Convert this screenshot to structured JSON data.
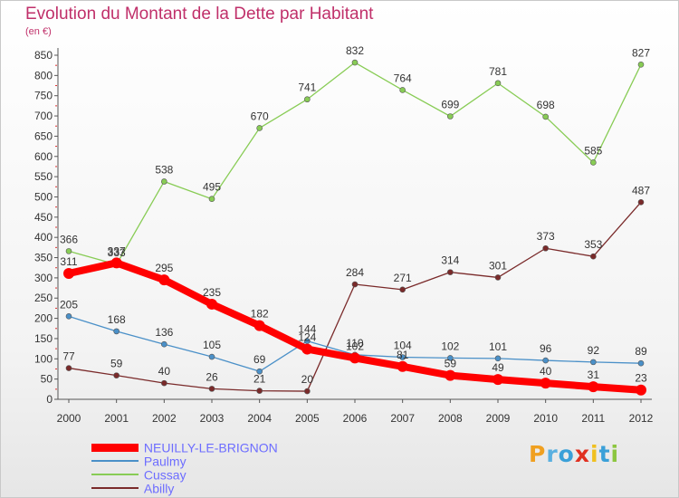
{
  "header": {
    "title": "Evolution du Montant de la Dette par Habitant",
    "unit": "(en €)"
  },
  "brand": {
    "letters": [
      "P",
      "r",
      "o",
      "x",
      "i",
      "t",
      "i"
    ],
    "colors": [
      "#f0a020",
      "#5ab0e0",
      "#3aa0d8",
      "#e03020",
      "#f0c020",
      "#3aa0d8",
      "#8cc63f"
    ]
  },
  "chart_data": {
    "type": "line",
    "x": [
      "2000",
      "2001",
      "2002",
      "2003",
      "2004",
      "2005",
      "2006",
      "2007",
      "2008",
      "2009",
      "2010",
      "2011",
      "2012"
    ],
    "ylim": [
      0,
      850
    ],
    "yticks": [
      0,
      50,
      100,
      150,
      200,
      250,
      300,
      350,
      400,
      450,
      500,
      550,
      600,
      650,
      700,
      750,
      800,
      850
    ],
    "grid": false,
    "legend_position": "bottom",
    "series": [
      {
        "name": "NEUILLY-LE-BRIGNON",
        "color": "#ff0000",
        "values": [
          311,
          337,
          295,
          235,
          182,
          124,
          102,
          81,
          59,
          49,
          40,
          31,
          23
        ]
      },
      {
        "name": "Paulmy",
        "color": "#4a90c8",
        "values": [
          205,
          168,
          136,
          105,
          69,
          144,
          110,
          104,
          102,
          101,
          96,
          92,
          89
        ]
      },
      {
        "name": "Cussay",
        "color": "#88cc55",
        "values": [
          366,
          333,
          538,
          495,
          670,
          741,
          832,
          764,
          699,
          781,
          698,
          585,
          827
        ]
      },
      {
        "name": "Abilly",
        "color": "#7a2a2a",
        "values": [
          77,
          59,
          40,
          26,
          21,
          20,
          284,
          271,
          314,
          301,
          373,
          353,
          487
        ]
      }
    ]
  }
}
